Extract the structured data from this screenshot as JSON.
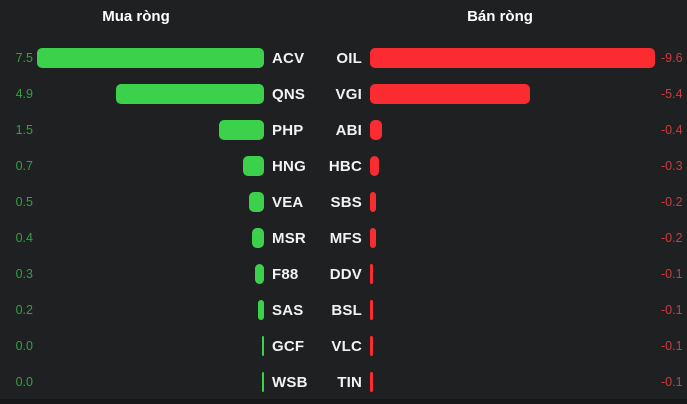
{
  "colors": {
    "background": "#1E2022",
    "green_bar": "#3BD14B",
    "green_text": "#2FA33C",
    "red_bar": "#FB2C31",
    "red_text": "#CF3A3F",
    "ticker_text": "#F2F2F2",
    "title_text": "#FFFFFF",
    "bottom_edge": "#17181A"
  },
  "chart_data": {
    "type": "bar",
    "orientation": "horizontal",
    "grid": false,
    "legend": false,
    "value_labels": true,
    "charts": [
      {
        "title": "Mua ròng",
        "side": "net-buy",
        "bar_color": "#3BD14B",
        "categories": [
          "ACV",
          "QNS",
          "PHP",
          "HNG",
          "VEA",
          "MSR",
          "F88",
          "SAS",
          "GCF",
          "WSB"
        ],
        "values": [
          7.5,
          4.9,
          1.5,
          0.7,
          0.5,
          0.4,
          0.3,
          0.2,
          0.0,
          0.0
        ],
        "display_values": [
          "7.5",
          "4.9",
          "1.5",
          "0.7",
          "0.5",
          "0.4",
          "0.3",
          "0.2",
          "0.0",
          "0.0"
        ],
        "value_range": [
          0,
          7.5
        ],
        "bar_direction": "right-to-left"
      },
      {
        "title": "Bán ròng",
        "side": "net-sell",
        "bar_color": "#FB2C31",
        "categories": [
          "OIL",
          "VGI",
          "ABI",
          "HBC",
          "SBS",
          "MFS",
          "DDV",
          "BSL",
          "VLC",
          "TIN"
        ],
        "values": [
          -9.6,
          -5.4,
          -0.4,
          -0.3,
          -0.2,
          -0.2,
          -0.1,
          -0.1,
          -0.1,
          -0.1
        ],
        "display_values": [
          "-9.6",
          "-5.4",
          "-0.4",
          "-0.3",
          "-0.2",
          "-0.2",
          "-0.1",
          "-0.1",
          "-0.1",
          "-0.1"
        ],
        "value_range": [
          -9.6,
          0
        ],
        "bar_direction": "left-to-right"
      }
    ]
  }
}
